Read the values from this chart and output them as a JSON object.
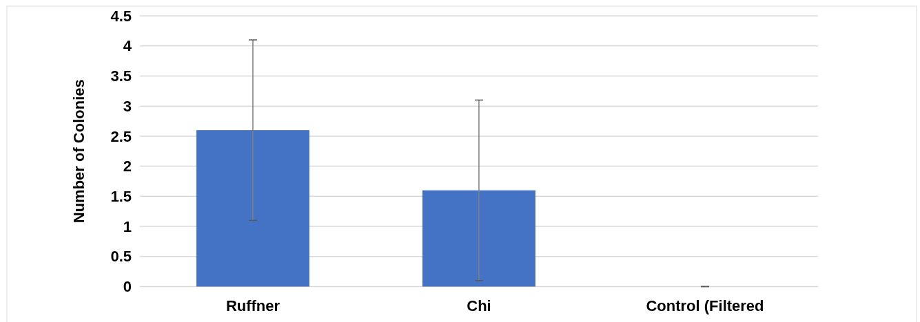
{
  "chart_data": {
    "type": "bar",
    "ylabel": "Number of Colonies",
    "categories": [
      "Ruffner",
      "Chi",
      "Control (Filtered"
    ],
    "values": [
      2.6,
      1.6,
      0
    ],
    "errors": [
      1.5,
      1.5,
      0
    ],
    "color": "#4472c4",
    "ylim": [
      0,
      4.5
    ],
    "yticks": [
      0,
      0.5,
      1,
      1.5,
      2,
      2.5,
      3,
      3.5,
      4,
      4.5
    ],
    "grid": "y"
  }
}
